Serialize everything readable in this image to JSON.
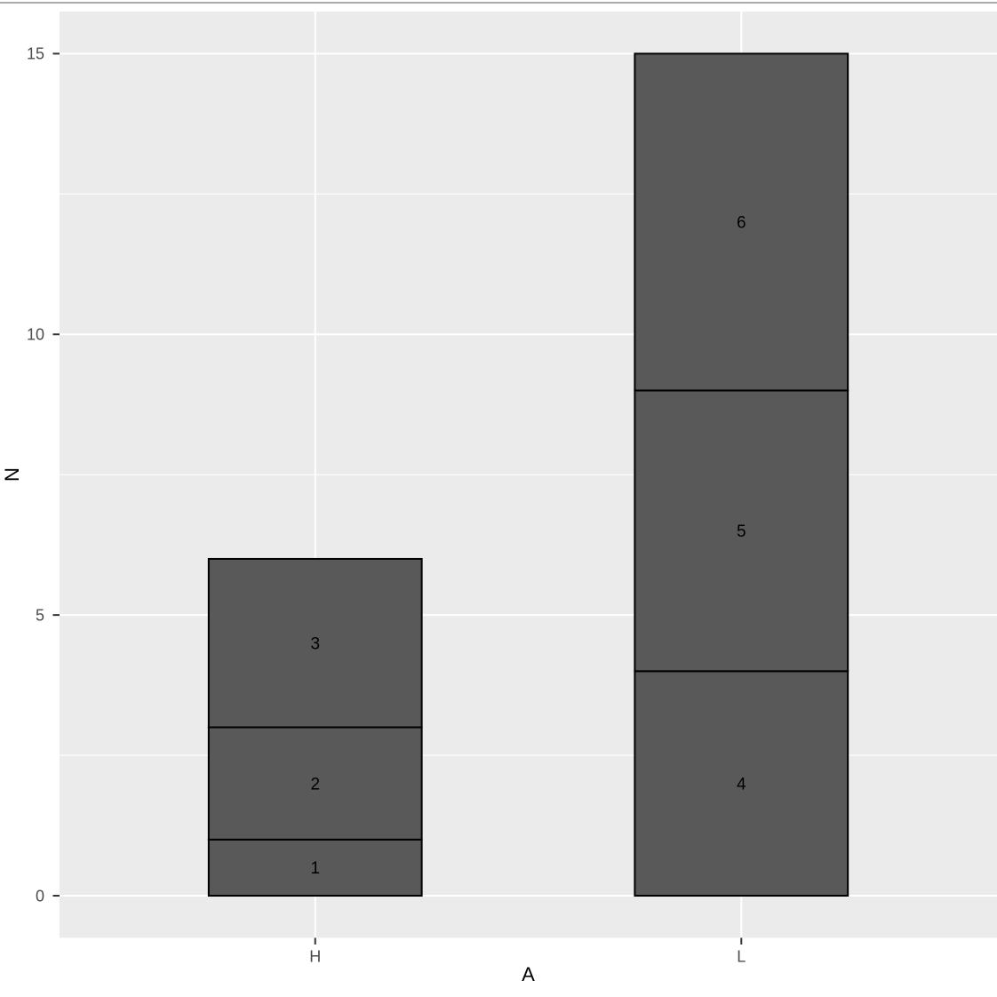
{
  "chart_data": {
    "type": "bar",
    "stacked": true,
    "title": "",
    "xlabel": "A",
    "ylabel": "N",
    "categories": [
      "H",
      "L"
    ],
    "stacks": [
      {
        "category": "H",
        "total": 6,
        "segments": [
          {
            "label": "1",
            "value": 1
          },
          {
            "label": "2",
            "value": 2
          },
          {
            "label": "3",
            "value": 3
          }
        ]
      },
      {
        "category": "L",
        "total": 15,
        "segments": [
          {
            "label": "4",
            "value": 4
          },
          {
            "label": "5",
            "value": 5
          },
          {
            "label": "6",
            "value": 6
          }
        ]
      }
    ],
    "ylim": [
      0,
      15
    ],
    "yticks": [
      {
        "label": "0",
        "value": 0
      },
      {
        "label": "5",
        "value": 5
      },
      {
        "label": "10",
        "value": 10
      },
      {
        "label": "15",
        "value": 15
      }
    ],
    "yticks_minor": [
      2.5,
      7.5,
      12.5
    ],
    "grid": "major-and-minor",
    "legend": "none",
    "colors": {
      "bar_fill": "#595959",
      "bar_stroke": "#000000",
      "panel_background": "#EBEBEB",
      "gridline_major": "#FFFFFF",
      "gridline_minor": "#FFFFFF",
      "tick_mark": "#333333",
      "tick_label": "#4D4D4D",
      "axis_title": "#000000",
      "segment_label": "#000000",
      "page_background": "#FFFFFF",
      "top_edge_line": "#A9A9A9"
    }
  }
}
